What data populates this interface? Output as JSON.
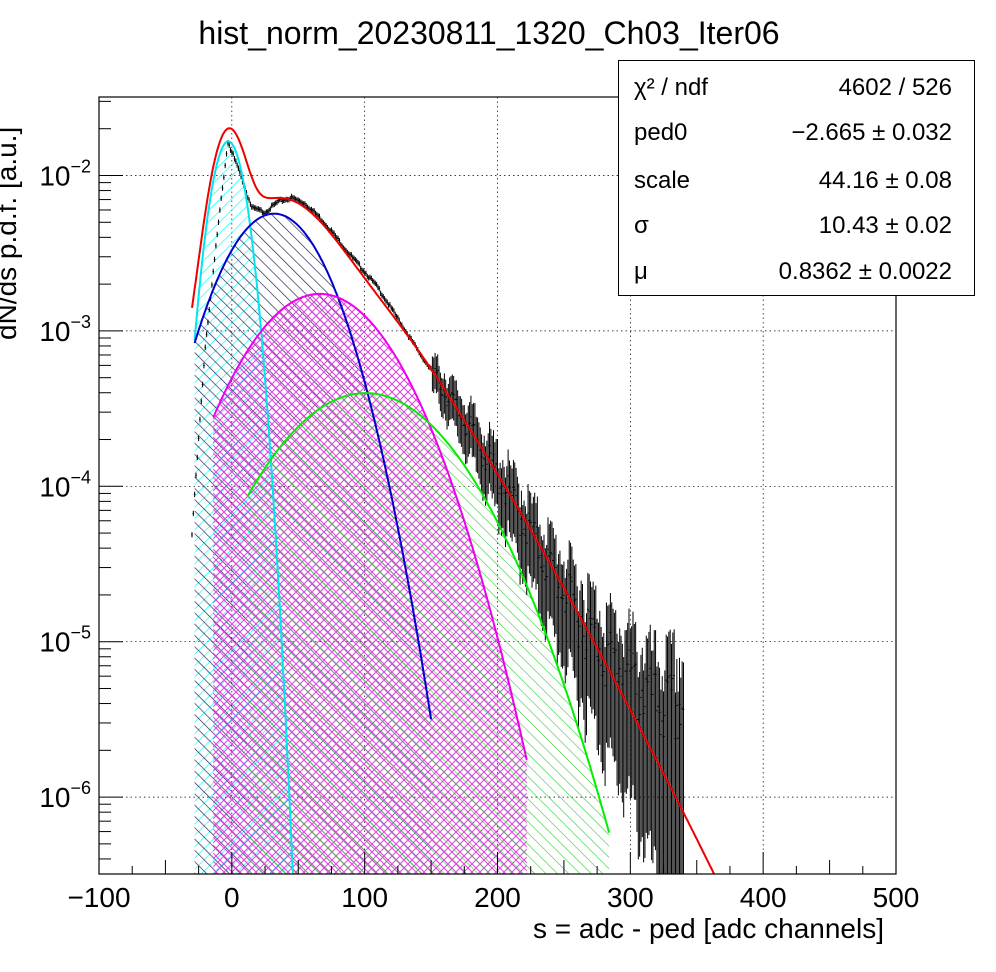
{
  "chart_data": {
    "type": "line",
    "title": "hist_norm_20230811_1320_Ch03_Iter06",
    "xlabel": "s = adc - ped [adc channels]",
    "ylabel": "dN/ds p.d.f. [a.u.]",
    "xlim": [
      -100,
      500
    ],
    "ylim": [
      3.2e-07,
      0.032
    ],
    "yscale": "log",
    "grid": true,
    "x_ticks": [
      "−100",
      "0",
      "100",
      "200",
      "300",
      "400",
      "500"
    ],
    "x_tick_values": [
      -100,
      0,
      100,
      200,
      300,
      400,
      500
    ],
    "y_ticks": [
      {
        "base": "10",
        "exp": "−2",
        "value": 0.01
      },
      {
        "base": "10",
        "exp": "−3",
        "value": 0.001
      },
      {
        "base": "10",
        "exp": "−4",
        "value": 0.0001
      },
      {
        "base": "10",
        "exp": "−5",
        "value": 1e-05
      },
      {
        "base": "10",
        "exp": "−6",
        "value": 1e-06
      }
    ],
    "fit_parameters": {
      "ped0": -2.665,
      "scale": 44.16,
      "sigma": 10.43,
      "mu": 0.8362
    },
    "series": [
      {
        "color": "#000000",
        "kind": "data-histogram",
        "x": [
          -30,
          -20,
          -10,
          -3,
          5,
          15,
          25,
          35,
          45,
          55,
          65,
          75,
          85,
          95,
          110,
          125,
          140,
          160,
          180,
          200,
          220,
          240,
          260,
          280,
          300,
          320,
          340
        ],
        "y": [
          5e-05,
          0.0008,
          0.005,
          0.0165,
          0.011,
          0.0062,
          0.0058,
          0.0068,
          0.0072,
          0.0066,
          0.0055,
          0.0044,
          0.0034,
          0.0027,
          0.0019,
          0.0012,
          0.00075,
          0.00042,
          0.00023,
          0.00012,
          6e-05,
          3e-05,
          1.6e-05,
          9e-06,
          6e-06,
          4e-06,
          4e-06
        ]
      },
      {
        "color": "#ff0000",
        "kind": "total-fit"
      },
      {
        "color": "#00ffff",
        "kind": "component-0",
        "peak_x": -2.665
      },
      {
        "color": "#0000cc",
        "kind": "component-1",
        "peak_x": 32
      },
      {
        "color": "#ff00ff",
        "kind": "component-2",
        "peak_x": 78
      },
      {
        "color": "#00ff00",
        "kind": "component-3",
        "peak_x": 125
      }
    ]
  },
  "stats": {
    "rows": [
      {
        "name": "χ² / ndf",
        "value": "4602 / 526"
      },
      {
        "name": "ped0",
        "value": "−2.665 ± 0.032"
      },
      {
        "name": "scale",
        "value": "44.16 ± 0.08"
      },
      {
        "name": "σ",
        "value": "10.43 ± 0.02"
      },
      {
        "name": "μ",
        "value": "0.8362 ± 0.0022"
      }
    ]
  }
}
